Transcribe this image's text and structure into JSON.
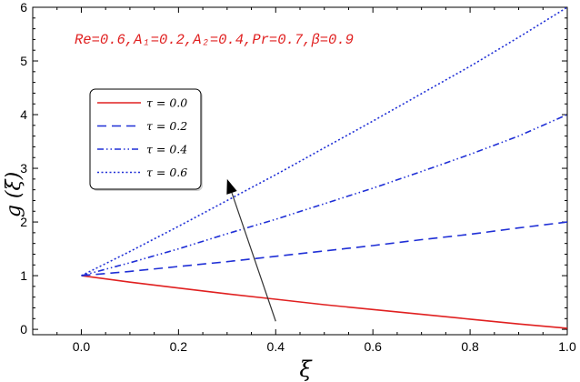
{
  "chart_data": {
    "type": "line",
    "xlabel": "ξ",
    "ylabel": "g (ξ)",
    "xlim": [
      -0.1,
      1.0
    ],
    "ylim": [
      -0.1,
      6.0
    ],
    "x_ticks": [
      "0.0",
      "0.2",
      "0.4",
      "0.6",
      "0.8",
      "1.0"
    ],
    "y_ticks": [
      "0",
      "1",
      "2",
      "3",
      "4",
      "5",
      "6"
    ],
    "x_tick_values": [
      0.0,
      0.2,
      0.4,
      0.6,
      0.8,
      1.0
    ],
    "y_tick_values": [
      0,
      1,
      2,
      3,
      4,
      5,
      6
    ],
    "annotation": "Re=0.6,A₁=0.2,A₂=0.4,Pr=0.7,β=0.9",
    "arrow": {
      "from": [
        0.4,
        0.15
      ],
      "to": [
        0.3,
        2.8
      ]
    },
    "legend_position": "upper-left",
    "series": [
      {
        "name": "τ = 0.0",
        "color": "#e02020",
        "dash": "solid",
        "x": [
          0.0,
          0.1,
          0.2,
          0.3,
          0.4,
          0.5,
          0.6,
          0.7,
          0.8,
          0.9,
          1.0
        ],
        "y": [
          1.0,
          0.88,
          0.77,
          0.66,
          0.56,
          0.46,
          0.37,
          0.28,
          0.19,
          0.1,
          0.02
        ]
      },
      {
        "name": "τ = 0.2",
        "color": "#1f2fd6",
        "dash": "dashed",
        "x": [
          0.0,
          0.1,
          0.2,
          0.3,
          0.4,
          0.5,
          0.6,
          0.7,
          0.8,
          0.9,
          1.0
        ],
        "y": [
          1.0,
          1.08,
          1.17,
          1.26,
          1.36,
          1.46,
          1.56,
          1.67,
          1.77,
          1.89,
          2.0
        ]
      },
      {
        "name": "τ = 0.4",
        "color": "#1f2fd6",
        "dash": "dashdotdot",
        "x": [
          0.0,
          0.1,
          0.2,
          0.3,
          0.4,
          0.5,
          0.6,
          0.7,
          0.8,
          0.9,
          1.0
        ],
        "y": [
          1.0,
          1.24,
          1.5,
          1.78,
          2.05,
          2.34,
          2.63,
          2.94,
          3.26,
          3.6,
          4.0
        ]
      },
      {
        "name": "τ = 0.6",
        "color": "#1f2fd6",
        "dash": "dotted",
        "x": [
          0.0,
          0.1,
          0.2,
          0.3,
          0.4,
          0.5,
          0.6,
          0.7,
          0.8,
          0.9,
          1.0
        ],
        "y": [
          1.0,
          1.45,
          1.92,
          2.4,
          2.88,
          3.38,
          3.88,
          4.39,
          4.9,
          5.44,
          6.0
        ]
      }
    ]
  }
}
